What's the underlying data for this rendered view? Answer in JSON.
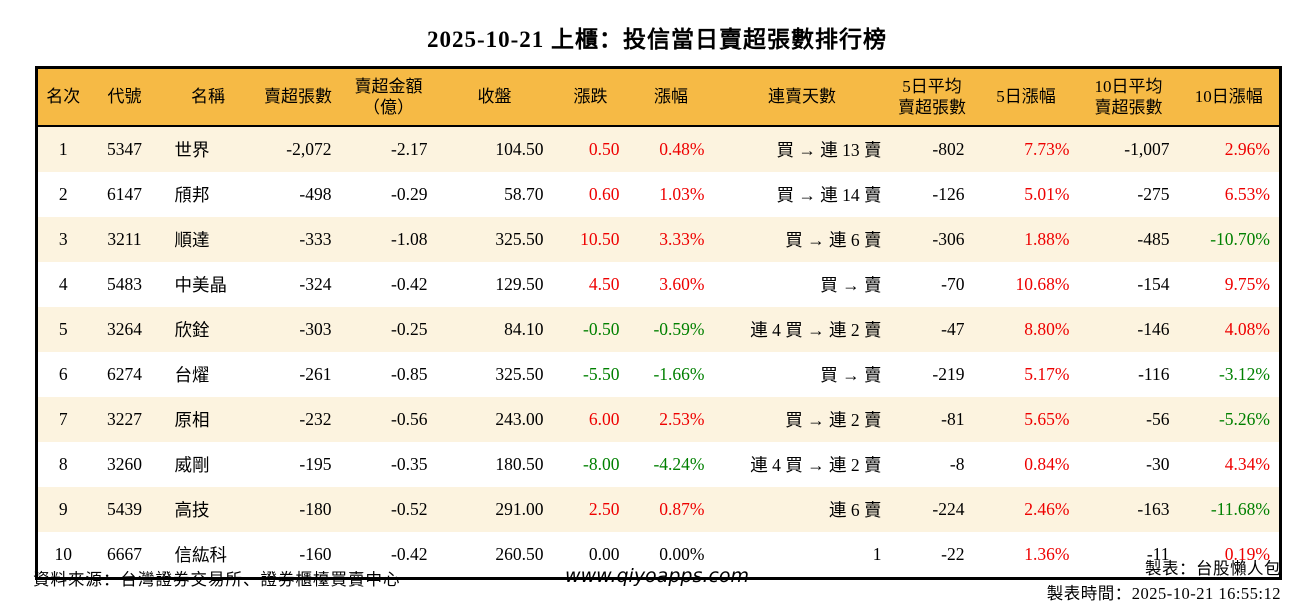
{
  "title": "2025-10-21 上櫃：投信當日賣超張數排行榜",
  "colors": {
    "header_bg": "#F6BA45",
    "row_alt_bg": "#FCF3DF",
    "up_red": "#EE0000",
    "down_green": "#008000",
    "border": "#000000"
  },
  "table": {
    "columns": [
      {
        "key": "rank",
        "label": "名次",
        "align": "ac"
      },
      {
        "key": "code",
        "label": "代號",
        "align": "ac"
      },
      {
        "key": "name",
        "label": "名稱",
        "align": "al"
      },
      {
        "key": "net_sell_volume",
        "label": "賣超張數",
        "align": "ar"
      },
      {
        "key": "net_sell_amount",
        "label": "賣超金額\n（億）",
        "align": "ar"
      },
      {
        "key": "close",
        "label": "收盤",
        "align": "ar"
      },
      {
        "key": "change",
        "label": "漲跌",
        "align": "ar",
        "color_key": "change_color"
      },
      {
        "key": "change_pct",
        "label": "漲幅",
        "align": "ar",
        "color_key": "change_pct_color"
      },
      {
        "key": "streak",
        "label": "連賣天數",
        "align": "ar"
      },
      {
        "key": "avg5",
        "label": "5日平均\n賣超張數",
        "align": "ar"
      },
      {
        "key": "pct5",
        "label": "5日漲幅",
        "align": "ar",
        "color_key": "pct5_color"
      },
      {
        "key": "avg10",
        "label": "10日平均\n賣超張數",
        "align": "ar"
      },
      {
        "key": "pct10",
        "label": "10日漲幅",
        "align": "ar",
        "color_key": "pct10_color"
      }
    ],
    "rows": [
      {
        "rank": "1",
        "code": "5347",
        "name": "世界",
        "net_sell_volume": "-2,072",
        "net_sell_amount": "-2.17",
        "close": "104.50",
        "change": "0.50",
        "change_color": "red",
        "change_pct": "0.48%",
        "change_pct_color": "red",
        "streak": "買 → 連 13 賣",
        "avg5": "-802",
        "pct5": "7.73%",
        "pct5_color": "red",
        "avg10": "-1,007",
        "pct10": "2.96%",
        "pct10_color": "red"
      },
      {
        "rank": "2",
        "code": "6147",
        "name": "頎邦",
        "net_sell_volume": "-498",
        "net_sell_amount": "-0.29",
        "close": "58.70",
        "change": "0.60",
        "change_color": "red",
        "change_pct": "1.03%",
        "change_pct_color": "red",
        "streak": "買 → 連 14 賣",
        "avg5": "-126",
        "pct5": "5.01%",
        "pct5_color": "red",
        "avg10": "-275",
        "pct10": "6.53%",
        "pct10_color": "red"
      },
      {
        "rank": "3",
        "code": "3211",
        "name": "順達",
        "net_sell_volume": "-333",
        "net_sell_amount": "-1.08",
        "close": "325.50",
        "change": "10.50",
        "change_color": "red",
        "change_pct": "3.33%",
        "change_pct_color": "red",
        "streak": "買 → 連 6 賣",
        "avg5": "-306",
        "pct5": "1.88%",
        "pct5_color": "red",
        "avg10": "-485",
        "pct10": "-10.70%",
        "pct10_color": "green"
      },
      {
        "rank": "4",
        "code": "5483",
        "name": "中美晶",
        "net_sell_volume": "-324",
        "net_sell_amount": "-0.42",
        "close": "129.50",
        "change": "4.50",
        "change_color": "red",
        "change_pct": "3.60%",
        "change_pct_color": "red",
        "streak": "買 → 賣",
        "avg5": "-70",
        "pct5": "10.68%",
        "pct5_color": "red",
        "avg10": "-154",
        "pct10": "9.75%",
        "pct10_color": "red"
      },
      {
        "rank": "5",
        "code": "3264",
        "name": "欣銓",
        "net_sell_volume": "-303",
        "net_sell_amount": "-0.25",
        "close": "84.10",
        "change": "-0.50",
        "change_color": "green",
        "change_pct": "-0.59%",
        "change_pct_color": "green",
        "streak": "連 4 買 → 連 2 賣",
        "avg5": "-47",
        "pct5": "8.80%",
        "pct5_color": "red",
        "avg10": "-146",
        "pct10": "4.08%",
        "pct10_color": "red"
      },
      {
        "rank": "6",
        "code": "6274",
        "name": "台燿",
        "net_sell_volume": "-261",
        "net_sell_amount": "-0.85",
        "close": "325.50",
        "change": "-5.50",
        "change_color": "green",
        "change_pct": "-1.66%",
        "change_pct_color": "green",
        "streak": "買 → 賣",
        "avg5": "-219",
        "pct5": "5.17%",
        "pct5_color": "red",
        "avg10": "-116",
        "pct10": "-3.12%",
        "pct10_color": "green"
      },
      {
        "rank": "7",
        "code": "3227",
        "name": "原相",
        "net_sell_volume": "-232",
        "net_sell_amount": "-0.56",
        "close": "243.00",
        "change": "6.00",
        "change_color": "red",
        "change_pct": "2.53%",
        "change_pct_color": "red",
        "streak": "買 → 連 2 賣",
        "avg5": "-81",
        "pct5": "5.65%",
        "pct5_color": "red",
        "avg10": "-56",
        "pct10": "-5.26%",
        "pct10_color": "green"
      },
      {
        "rank": "8",
        "code": "3260",
        "name": "威剛",
        "net_sell_volume": "-195",
        "net_sell_amount": "-0.35",
        "close": "180.50",
        "change": "-8.00",
        "change_color": "green",
        "change_pct": "-4.24%",
        "change_pct_color": "green",
        "streak": "連 4 買 → 連 2 賣",
        "avg5": "-8",
        "pct5": "0.84%",
        "pct5_color": "red",
        "avg10": "-30",
        "pct10": "4.34%",
        "pct10_color": "red"
      },
      {
        "rank": "9",
        "code": "5439",
        "name": "高技",
        "net_sell_volume": "-180",
        "net_sell_amount": "-0.52",
        "close": "291.00",
        "change": "2.50",
        "change_color": "red",
        "change_pct": "0.87%",
        "change_pct_color": "red",
        "streak": "連 6 賣",
        "avg5": "-224",
        "pct5": "2.46%",
        "pct5_color": "red",
        "avg10": "-163",
        "pct10": "-11.68%",
        "pct10_color": "green"
      },
      {
        "rank": "10",
        "code": "6667",
        "name": "信紘科",
        "net_sell_volume": "-160",
        "net_sell_amount": "-0.42",
        "close": "260.50",
        "change": "0.00",
        "change_color": "black",
        "change_pct": "0.00%",
        "change_pct_color": "black",
        "streak": "1",
        "avg5": "-22",
        "pct5": "1.36%",
        "pct5_color": "red",
        "avg10": "-11",
        "pct10": "0.19%",
        "pct10_color": "red"
      }
    ]
  },
  "footer": {
    "source": "資料來源：台灣證券交易所、證券櫃檯買賣中心",
    "website": "www.qiyoapps.com",
    "maker": "製表：台股懶人包",
    "made_time": "製表時間：2025-10-21 16:55:12"
  }
}
